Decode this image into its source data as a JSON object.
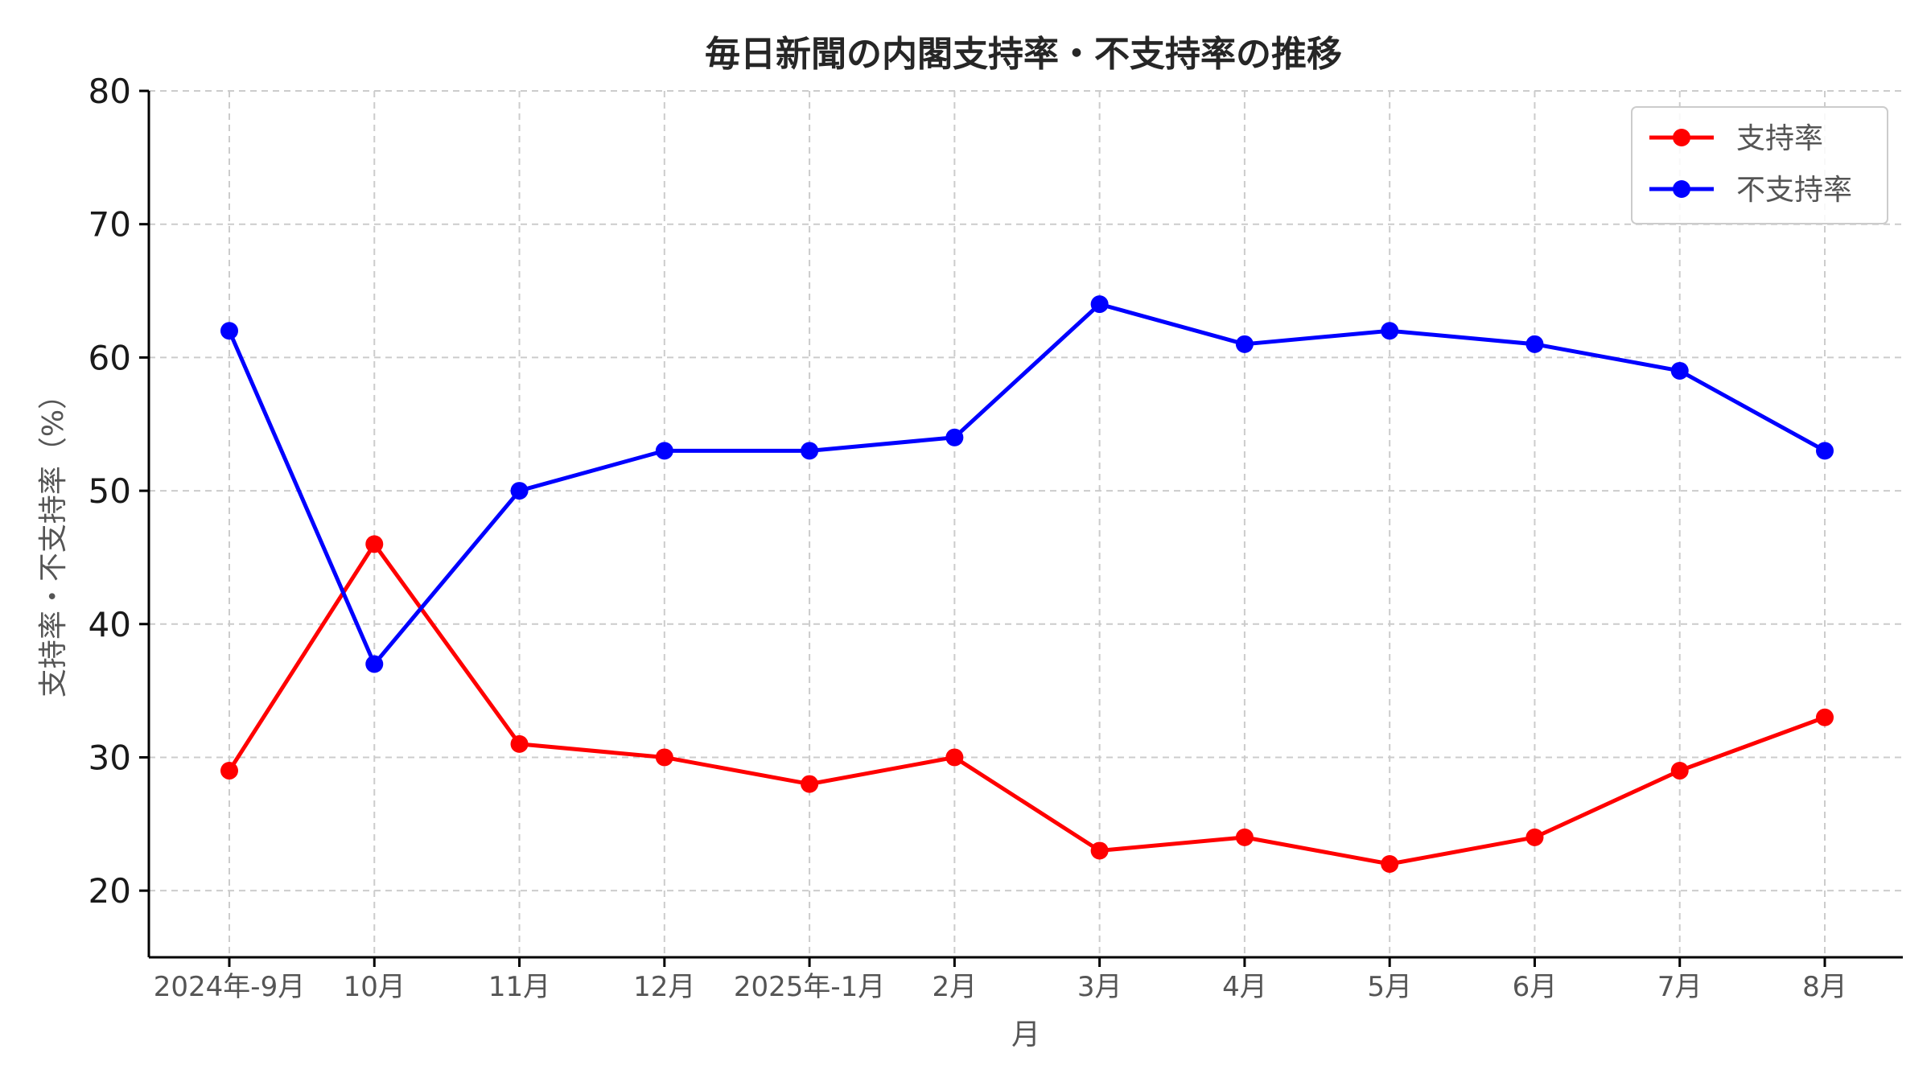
{
  "chart_data": {
    "type": "line",
    "title": "毎日新聞の内閣支持率・不支持率の推移",
    "xlabel": "月",
    "ylabel": "支持率・不支持率（%）",
    "categories": [
      "2024年-9月",
      "10月",
      "11月",
      "12月",
      "2025年-1月",
      "2月",
      "3月",
      "4月",
      "5月",
      "6月",
      "7月",
      "8月"
    ],
    "ylim": [
      15,
      80
    ],
    "yticks": [
      20,
      30,
      40,
      50,
      60,
      70,
      80
    ],
    "grid": true,
    "legend_position": "top-right",
    "series": [
      {
        "name": "支持率",
        "color": "#ff0000",
        "values": [
          29,
          46,
          31,
          30,
          28,
          30,
          23,
          24,
          22,
          24,
          29,
          33
        ]
      },
      {
        "name": "不支持率",
        "color": "#0000ff",
        "values": [
          62,
          37,
          50,
          53,
          53,
          54,
          64,
          61,
          62,
          61,
          59,
          53
        ]
      }
    ]
  }
}
